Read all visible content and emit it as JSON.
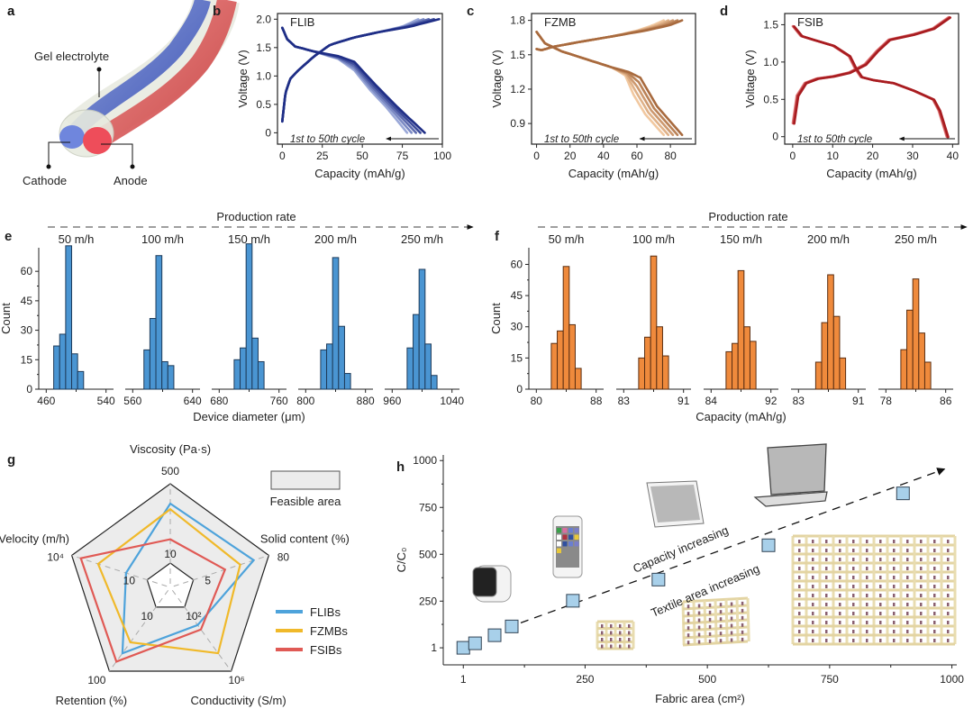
{
  "panels": {
    "a": {
      "letter": "a",
      "labels": {
        "gel": "Gel electrolyte",
        "cathode": "Cathode",
        "anode": "Anode"
      }
    },
    "b": {
      "letter": "b"
    },
    "c": {
      "letter": "c"
    },
    "d": {
      "letter": "d"
    },
    "e": {
      "letter": "e",
      "rate_title": "Production rate"
    },
    "f": {
      "letter": "f",
      "rate_title": "Production rate"
    },
    "g": {
      "letter": "g",
      "feasible_label": "Feasible area"
    },
    "h": {
      "letter": "h"
    }
  },
  "colors": {
    "flib": "#2e3d8f",
    "fzmb": "#c8875a",
    "fsib": "#d9545a",
    "hist_blue": "#4a95d2",
    "hist_orange": "#ef8a3c",
    "radar_flib": "#4ea3db",
    "radar_fzmb": "#f0b92a",
    "radar_fsib": "#e05a55",
    "point_fill": "#a8d0ea"
  },
  "chart_data": [
    {
      "id": "b",
      "type": "line",
      "title": "FLIB",
      "xlabel": "Capacity (mAh/g)",
      "ylabel": "Voltage (V)",
      "xlim": [
        -3,
        100
      ],
      "ylim": [
        -0.2,
        2.1
      ],
      "xticks": [
        "0",
        "25",
        "50",
        "75",
        "100"
      ],
      "xtick_values": [
        0,
        25,
        50,
        75,
        100
      ],
      "yticks": [
        "0",
        "0.5",
        "1.0",
        "1.5",
        "2.0"
      ],
      "ytick_values": [
        0,
        0.5,
        1.0,
        1.5,
        2.0
      ],
      "annotation": "1st to 50th cycle",
      "series": [
        {
          "name": "charge-cycle-1",
          "x": [
            0,
            2,
            5,
            10,
            20,
            30,
            45,
            60,
            75,
            85
          ],
          "y": [
            0.2,
            0.7,
            0.95,
            1.1,
            1.35,
            1.55,
            1.68,
            1.77,
            1.87,
            2.0
          ]
        },
        {
          "name": "charge-cycle-50",
          "x": [
            0,
            2,
            5,
            10,
            20,
            30,
            45,
            60,
            80,
            98
          ],
          "y": [
            0.2,
            0.7,
            0.95,
            1.1,
            1.35,
            1.55,
            1.68,
            1.77,
            1.87,
            2.0
          ]
        },
        {
          "name": "discharge-cycle-1",
          "x": [
            0,
            3,
            8,
            20,
            35,
            45,
            55,
            65,
            78
          ],
          "y": [
            1.85,
            1.65,
            1.52,
            1.43,
            1.3,
            1.1,
            0.75,
            0.45,
            0.0
          ]
        },
        {
          "name": "discharge-cycle-50",
          "x": [
            0,
            3,
            8,
            20,
            35,
            45,
            58,
            72,
            89
          ],
          "y": [
            1.85,
            1.65,
            1.52,
            1.43,
            1.35,
            1.25,
            0.85,
            0.45,
            0.0
          ]
        }
      ]
    },
    {
      "id": "c",
      "type": "line",
      "title": "FZMB",
      "xlabel": "Capacity (mAh/g)",
      "ylabel": "Voltage (V)",
      "xlim": [
        -3,
        95
      ],
      "ylim": [
        0.72,
        1.86
      ],
      "xticks": [
        "0",
        "20",
        "40",
        "60",
        "80"
      ],
      "xtick_values": [
        0,
        20,
        40,
        60,
        80
      ],
      "yticks": [
        "0.9",
        "1.2",
        "1.5",
        "1.8"
      ],
      "ytick_values": [
        0.9,
        1.2,
        1.5,
        1.8
      ],
      "annotation": "1st to 50th cycle",
      "series": [
        {
          "name": "charge-cycle-1",
          "x": [
            0,
            3,
            10,
            25,
            45,
            60,
            70,
            76
          ],
          "y": [
            1.55,
            1.54,
            1.57,
            1.61,
            1.66,
            1.71,
            1.76,
            1.8
          ]
        },
        {
          "name": "charge-cycle-50",
          "x": [
            0,
            3,
            10,
            25,
            45,
            65,
            80,
            87
          ],
          "y": [
            1.55,
            1.54,
            1.57,
            1.61,
            1.66,
            1.71,
            1.76,
            1.8
          ]
        },
        {
          "name": "discharge-cycle-1",
          "x": [
            0,
            5,
            15,
            30,
            45,
            53,
            58,
            65,
            76
          ],
          "y": [
            1.7,
            1.6,
            1.53,
            1.46,
            1.39,
            1.32,
            1.15,
            0.98,
            0.8
          ]
        },
        {
          "name": "discharge-cycle-50",
          "x": [
            0,
            5,
            15,
            30,
            45,
            55,
            62,
            72,
            87
          ],
          "y": [
            1.7,
            1.6,
            1.53,
            1.46,
            1.39,
            1.35,
            1.3,
            1.05,
            0.8
          ]
        }
      ]
    },
    {
      "id": "d",
      "type": "line",
      "title": "FSIB",
      "xlabel": "Capacity (mAh/g)",
      "ylabel": "Voltage (V)",
      "xlim": [
        -2,
        41.5
      ],
      "ylim": [
        -0.1,
        1.65
      ],
      "xticks": [
        "0",
        "10",
        "20",
        "30",
        "40"
      ],
      "xtick_values": [
        0,
        10,
        20,
        30,
        40
      ],
      "yticks": [
        "0",
        "0.5",
        "1.0",
        "1.5"
      ],
      "ytick_values": [
        0,
        0.5,
        1.0,
        1.5
      ],
      "annotation": "1st to 50th cycle",
      "series": [
        {
          "name": "charge",
          "x": [
            0,
            1,
            3,
            6,
            10,
            14,
            18,
            21,
            24,
            30,
            35,
            39
          ],
          "y": [
            0.18,
            0.55,
            0.72,
            0.78,
            0.81,
            0.86,
            0.97,
            1.15,
            1.3,
            1.37,
            1.45,
            1.6
          ]
        },
        {
          "name": "discharge",
          "x": [
            0,
            2,
            5,
            10,
            14,
            15.5,
            17,
            20,
            25,
            30,
            35,
            36.5,
            38.5
          ],
          "y": [
            1.48,
            1.35,
            1.3,
            1.22,
            1.08,
            0.92,
            0.8,
            0.76,
            0.72,
            0.62,
            0.5,
            0.35,
            0.0
          ]
        }
      ]
    },
    {
      "id": "e",
      "type": "bar",
      "title": "Production rate",
      "xlabel": "Device diameter (μm)",
      "ylabel": "Count",
      "ylim": [
        0,
        72
      ],
      "yticks": [
        "0",
        "15",
        "30",
        "45",
        "60"
      ],
      "ytick_values": [
        0,
        15,
        30,
        45,
        60
      ],
      "groups": [
        {
          "rate": "50 m/h",
          "xticks": [
            "460",
            "540"
          ],
          "xlim": [
            450,
            550
          ],
          "bin_start": 470,
          "bin_width": 8,
          "counts": [
            22,
            28,
            73,
            18,
            9
          ]
        },
        {
          "rate": "100 m/h",
          "xticks": [
            "560",
            "640"
          ],
          "xlim": [
            550,
            650
          ],
          "bin_start": 575,
          "bin_width": 8,
          "counts": [
            20,
            36,
            68,
            14,
            12
          ]
        },
        {
          "rate": "150 m/h",
          "xticks": [
            "680",
            "760"
          ],
          "xlim": [
            670,
            770
          ],
          "bin_start": 700,
          "bin_width": 8,
          "counts": [
            15,
            21,
            74,
            26,
            14
          ]
        },
        {
          "rate": "200 m/h",
          "xticks": [
            "800",
            "880"
          ],
          "xlim": [
            790,
            890
          ],
          "bin_start": 820,
          "bin_width": 8,
          "counts": [
            20,
            23,
            67,
            32,
            8
          ]
        },
        {
          "rate": "250 m/h",
          "xticks": [
            "960",
            "1040"
          ],
          "xlim": [
            950,
            1050
          ],
          "bin_start": 980,
          "bin_width": 8,
          "counts": [
            21,
            38,
            61,
            23,
            7
          ]
        }
      ]
    },
    {
      "id": "f",
      "type": "bar",
      "title": "Production rate",
      "xlabel": "Capacity (mAh/g)",
      "ylabel": "Count",
      "ylim": [
        0,
        68
      ],
      "yticks": [
        "0",
        "15",
        "30",
        "45",
        "60"
      ],
      "ytick_values": [
        0,
        15,
        30,
        45,
        60
      ],
      "groups": [
        {
          "rate": "50 m/h",
          "xticks": [
            "80",
            "88"
          ],
          "xlim": [
            79,
            89
          ],
          "bin_start": 82,
          "bin_width": 0.8,
          "counts": [
            22,
            28,
            59,
            31,
            10
          ]
        },
        {
          "rate": "100 m/h",
          "xticks": [
            "83",
            "91"
          ],
          "xlim": [
            82,
            92
          ],
          "bin_start": 85,
          "bin_width": 0.8,
          "counts": [
            15,
            25,
            64,
            30,
            16
          ]
        },
        {
          "rate": "150 m/h",
          "xticks": [
            "84",
            "92"
          ],
          "xlim": [
            83,
            93
          ],
          "bin_start": 86,
          "bin_width": 0.8,
          "counts": [
            18,
            22,
            57,
            30,
            23
          ]
        },
        {
          "rate": "200 m/h",
          "xticks": [
            "83",
            "91"
          ],
          "xlim": [
            82,
            92
          ],
          "bin_start": 85.3,
          "bin_width": 0.8,
          "counts": [
            13,
            32,
            55,
            35,
            15
          ]
        },
        {
          "rate": "250 m/h",
          "xticks": [
            "78",
            "86"
          ],
          "xlim": [
            77,
            87
          ],
          "bin_start": 80,
          "bin_width": 0.8,
          "counts": [
            19,
            38,
            53,
            27,
            13
          ]
        }
      ]
    },
    {
      "id": "g",
      "type": "radar",
      "axes": [
        {
          "name": "Viscosity (Pa·s)",
          "outer": "500",
          "inner": "10"
        },
        {
          "name": "Solid content (%)",
          "outer": "80",
          "inner": "5"
        },
        {
          "name": "Conductivity (S/m)",
          "outer": "10⁶",
          "inner": "10²"
        },
        {
          "name": "Retention (%)",
          "outer": "100",
          "inner": "10"
        },
        {
          "name": "Velocity (m/h)",
          "outer": "10⁴",
          "inner": "10"
        }
      ],
      "series": [
        {
          "name": "FLIBs",
          "values": [
            0.75,
            0.8,
            0.28,
            0.72,
            0.28
          ]
        },
        {
          "name": "FZMBs",
          "values": [
            0.68,
            0.62,
            0.72,
            0.55,
            0.65
          ]
        },
        {
          "name": "FSIBs",
          "values": [
            0.3,
            0.42,
            0.35,
            0.85,
            0.88
          ]
        }
      ],
      "legend": "bottom-right",
      "feasible_area": "Feasible area"
    },
    {
      "id": "h",
      "type": "scatter",
      "xlabel": "Fabric area (cm²)",
      "ylabel": "C/C₀",
      "xlim": [
        -40,
        1010
      ],
      "ylim": [
        -90,
        1030
      ],
      "xticks": [
        "1",
        "250",
        "500",
        "750",
        "1000"
      ],
      "xtick_values": [
        1,
        250,
        500,
        750,
        1000
      ],
      "yticks": [
        "1",
        "250",
        "500",
        "750",
        "1000"
      ],
      "ytick_values": [
        1,
        250,
        500,
        750,
        1000
      ],
      "points": [
        {
          "x": 1,
          "y": 1
        },
        {
          "x": 25,
          "y": 25
        },
        {
          "x": 65,
          "y": 68
        },
        {
          "x": 100,
          "y": 115
        },
        {
          "x": 225,
          "y": 252
        },
        {
          "x": 400,
          "y": 365
        },
        {
          "x": 625,
          "y": 548
        },
        {
          "x": 900,
          "y": 825
        }
      ],
      "annotations": [
        "Capacity increasing",
        "Textile area increasing"
      ]
    }
  ]
}
